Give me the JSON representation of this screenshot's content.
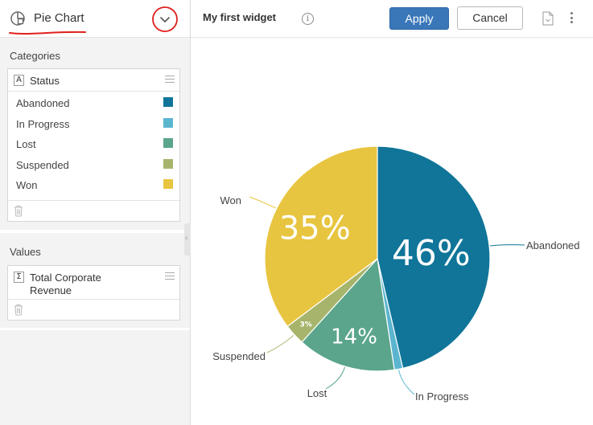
{
  "sidebar": {
    "chart_type_label": "Pie Chart",
    "chart_type_icon": "pie-chart-icon",
    "categories_title": "Categories",
    "category_field": {
      "badge": "A",
      "label": "Status"
    },
    "values_title": "Values",
    "value_field": {
      "badge": "Σ",
      "label_line1": "Total Corporate",
      "label_line2": "Revenue"
    },
    "legend_items": [
      {
        "label": "Abandoned",
        "color": "#107599"
      },
      {
        "label": "In Progress",
        "color": "#5bb5cf"
      },
      {
        "label": "Lost",
        "color": "#5aa58c"
      },
      {
        "label": "Suspended",
        "color": "#a6b56b"
      },
      {
        "label": "Won",
        "color": "#e8c540"
      }
    ]
  },
  "toolbar": {
    "widget_title": "My first widget",
    "info_glyph": "i",
    "apply_label": "Apply",
    "cancel_label": "Cancel"
  },
  "chart_data": {
    "type": "pie",
    "slices": [
      {
        "label": "Abandoned",
        "value": 46,
        "value_label": "46%",
        "color": "#107599"
      },
      {
        "label": "In Progress",
        "value": 1.2,
        "value_label": "",
        "color": "#5bb5cf"
      },
      {
        "label": "Lost",
        "value": 14,
        "value_label": "14%",
        "color": "#5aa58c"
      },
      {
        "label": "Suspended",
        "value": 3,
        "value_label": "3%",
        "color": "#a6b56b"
      },
      {
        "label": "Won",
        "value": 35,
        "value_label": "35%",
        "color": "#e8c540"
      }
    ]
  }
}
